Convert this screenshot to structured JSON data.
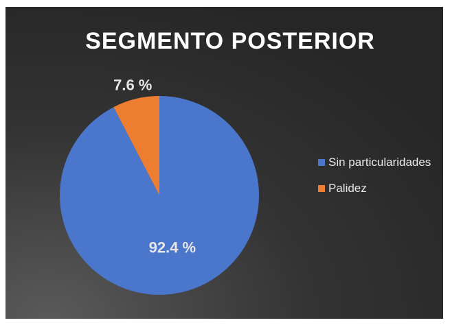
{
  "chart_data": {
    "type": "pie",
    "title": "SEGMENTO POSTERIOR",
    "categories": [
      "Sin particularidades",
      "Palidez"
    ],
    "values": [
      92.4,
      7.6
    ],
    "value_labels": [
      "92.4 %",
      "7.6 %"
    ],
    "colors": [
      "#4a76cc",
      "#ed7d31"
    ],
    "legend": "right"
  }
}
